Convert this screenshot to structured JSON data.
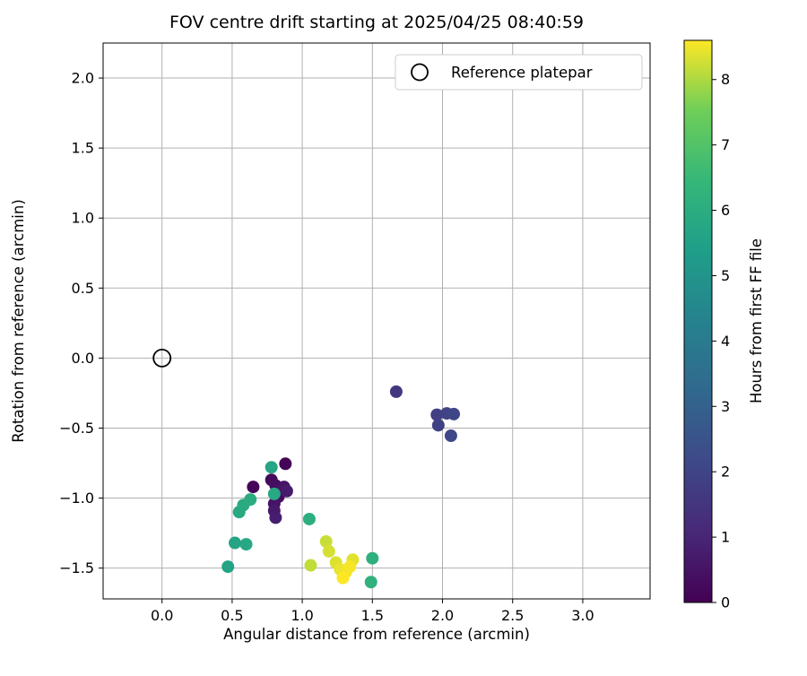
{
  "title": "FOV centre drift starting at 2025/04/25 08:40:59",
  "chart_data": {
    "type": "scatter",
    "title": "FOV centre drift starting at 2025/04/25 08:40:59",
    "xlabel": "Angular distance from reference (arcmin)",
    "ylabel": "Rotation from reference (arcmin)",
    "xlim": [
      -0.42,
      3.48
    ],
    "ylim": [
      -1.72,
      2.25
    ],
    "xticks": [
      0.0,
      0.5,
      1.0,
      1.5,
      2.0,
      2.5,
      3.0
    ],
    "yticks": [
      -1.5,
      -1.0,
      -0.5,
      0.0,
      0.5,
      1.0,
      1.5,
      2.0
    ],
    "grid": true,
    "legend": {
      "label": "Reference platepar",
      "position": "upper right"
    },
    "reference_point": {
      "x": 0.0,
      "y": 0.0
    },
    "colorbar": {
      "label": "Hours from first FF file",
      "min": 0,
      "max": 8.6,
      "ticks": [
        0,
        1,
        2,
        3,
        4,
        5,
        6,
        7,
        8
      ],
      "colormap": "viridis"
    },
    "points": [
      {
        "x": 0.88,
        "y": -0.755,
        "hours": 0.05
      },
      {
        "x": 0.65,
        "y": -0.92,
        "hours": 0.15
      },
      {
        "x": 0.78,
        "y": -0.87,
        "hours": 0.25
      },
      {
        "x": 0.83,
        "y": -0.99,
        "hours": 0.3
      },
      {
        "x": 0.81,
        "y": -0.91,
        "hours": 0.35
      },
      {
        "x": 0.84,
        "y": -0.94,
        "hours": 0.45
      },
      {
        "x": 0.8,
        "y": -1.04,
        "hours": 0.5
      },
      {
        "x": 0.87,
        "y": -0.92,
        "hours": 0.55
      },
      {
        "x": 0.8,
        "y": -1.09,
        "hours": 0.65
      },
      {
        "x": 0.89,
        "y": -0.95,
        "hours": 0.7
      },
      {
        "x": 0.81,
        "y": -1.14,
        "hours": 0.8
      },
      {
        "x": 1.67,
        "y": -0.24,
        "hours": 1.6
      },
      {
        "x": 1.96,
        "y": -0.405,
        "hours": 1.85
      },
      {
        "x": 1.97,
        "y": -0.48,
        "hours": 1.9
      },
      {
        "x": 2.03,
        "y": -0.395,
        "hours": 1.95
      },
      {
        "x": 2.08,
        "y": -0.4,
        "hours": 2.05
      },
      {
        "x": 2.06,
        "y": -0.555,
        "hours": 2.1
      },
      {
        "x": 0.47,
        "y": -1.49,
        "hours": 5.6
      },
      {
        "x": 0.52,
        "y": -1.32,
        "hours": 5.65
      },
      {
        "x": 0.78,
        "y": -0.78,
        "hours": 5.7
      },
      {
        "x": 0.6,
        "y": -1.33,
        "hours": 5.75
      },
      {
        "x": 0.8,
        "y": -0.97,
        "hours": 5.8
      },
      {
        "x": 0.55,
        "y": -1.1,
        "hours": 5.85
      },
      {
        "x": 0.58,
        "y": -1.05,
        "hours": 5.9
      },
      {
        "x": 0.63,
        "y": -1.01,
        "hours": 5.95
      },
      {
        "x": 1.05,
        "y": -1.15,
        "hours": 6.05
      },
      {
        "x": 1.5,
        "y": -1.43,
        "hours": 6.1
      },
      {
        "x": 1.49,
        "y": -1.6,
        "hours": 6.2
      },
      {
        "x": 1.06,
        "y": -1.48,
        "hours": 8.15
      },
      {
        "x": 1.17,
        "y": -1.31,
        "hours": 8.2
      },
      {
        "x": 1.19,
        "y": -1.38,
        "hours": 8.3
      },
      {
        "x": 1.24,
        "y": -1.46,
        "hours": 8.35
      },
      {
        "x": 1.36,
        "y": -1.44,
        "hours": 8.4
      },
      {
        "x": 1.27,
        "y": -1.51,
        "hours": 8.45
      },
      {
        "x": 1.31,
        "y": -1.53,
        "hours": 8.5
      },
      {
        "x": 1.34,
        "y": -1.49,
        "hours": 8.55
      },
      {
        "x": 1.29,
        "y": -1.57,
        "hours": 8.6
      }
    ]
  },
  "colors": {
    "background": "#ffffff",
    "grid": "#b0b0b0",
    "axis": "#000000",
    "text": "#000000",
    "legend_border": "#cccccc",
    "marker_stroke": "#000000",
    "viridis_stops": [
      "#440154",
      "#482878",
      "#3e4989",
      "#31688e",
      "#26828e",
      "#1f9e89",
      "#35b779",
      "#6ece58",
      "#fde725"
    ]
  }
}
